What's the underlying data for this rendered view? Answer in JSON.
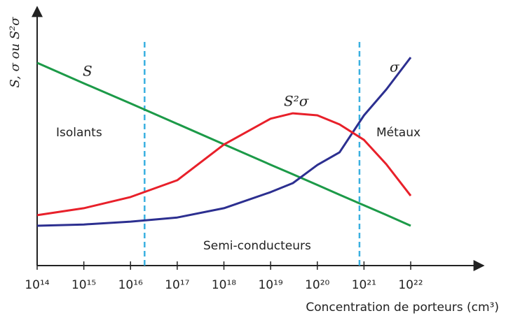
{
  "chart_data": {
    "type": "line",
    "x_label": "Concentration de porteurs (cm³)",
    "y_label": "S, σ ou S²σ",
    "log_x": true,
    "xlim": [
      100000000000000.0,
      1e+22
    ],
    "ylim": [
      0,
      100
    ],
    "xticks": [
      {
        "value": 100000000000000.0,
        "label": "10¹⁴"
      },
      {
        "value": 1000000000000000.0,
        "label": "10¹⁵"
      },
      {
        "value": 1e+16,
        "label": "10¹⁶"
      },
      {
        "value": 1e+17,
        "label": "10¹⁷"
      },
      {
        "value": 1e+18,
        "label": "10¹⁸"
      },
      {
        "value": 1e+19,
        "label": "10¹⁹"
      },
      {
        "value": 1e+20,
        "label": "10²⁰"
      },
      {
        "value": 1e+21,
        "label": "10²¹"
      },
      {
        "value": 1e+22,
        "label": "10²²"
      }
    ],
    "x": [
      100000000000000.0,
      1000000000000000.0,
      1e+16,
      1e+17,
      1e+18,
      1e+19,
      3e+19,
      1e+20,
      3e+20,
      1e+21,
      3e+21,
      1e+22
    ],
    "series": [
      {
        "name": "S",
        "color": "#1c9a48",
        "values": [
          78.4,
          70.5,
          62.7,
          54.8,
          46.9,
          39.0,
          35.3,
          31.2,
          27.4,
          23.3,
          19.6,
          15.4
        ]
      },
      {
        "name": "σ",
        "color": "#2c2f90",
        "values": [
          15.4,
          15.9,
          17.0,
          18.6,
          22.2,
          28.4,
          31.9,
          38.9,
          43.8,
          58.1,
          68.1,
          80.5
        ]
      },
      {
        "name": "S²σ",
        "color": "#e8202a",
        "values": [
          19.5,
          22.2,
          26.5,
          33.0,
          46.8,
          56.8,
          58.9,
          58.1,
          54.6,
          48.6,
          39.2,
          27.0
        ]
      }
    ],
    "vlines": [
      2e+16,
      8e+20
    ],
    "vline_color": "#3ab0e0",
    "annotations": [
      "Isolants",
      "Métaux",
      "Semi-conducteurs"
    ]
  }
}
